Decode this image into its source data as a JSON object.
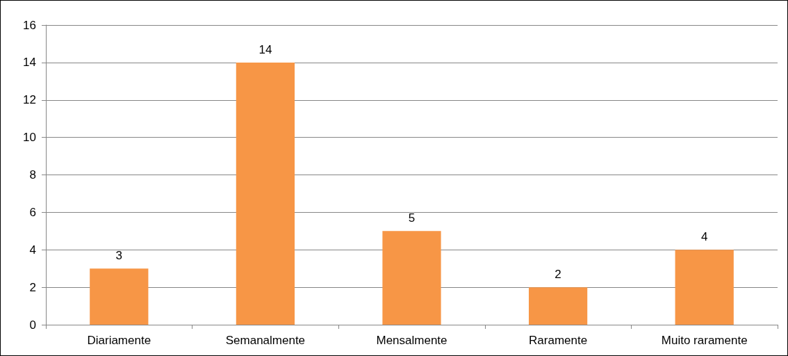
{
  "chart_data": {
    "type": "bar",
    "categories": [
      "Diariamente",
      "Semanalmente",
      "Mensalmente",
      "Raramente",
      "Muito raramente"
    ],
    "values": [
      3,
      14,
      5,
      2,
      4
    ],
    "color": "#f79646",
    "ylim": [
      0,
      16
    ],
    "yticks": [
      0,
      2,
      4,
      6,
      8,
      10,
      12,
      14,
      16
    ],
    "grid": "y",
    "data_labels": true
  }
}
